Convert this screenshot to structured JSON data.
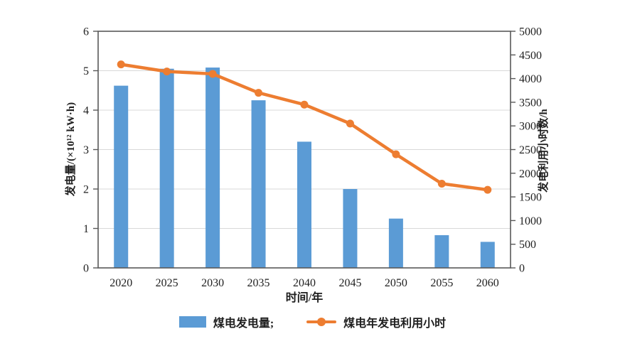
{
  "chart_data": {
    "type": "combo-bar-line",
    "categories": [
      "2020",
      "2025",
      "2030",
      "2035",
      "2040",
      "2045",
      "2050",
      "2055",
      "2060"
    ],
    "series": [
      {
        "name": "煤电发电量",
        "chart": "bar",
        "axis": "left",
        "values": [
          4.62,
          5.05,
          5.08,
          4.25,
          3.2,
          2.0,
          1.25,
          0.83,
          0.66
        ]
      },
      {
        "name": "煤电年发电利用小时",
        "chart": "line",
        "axis": "right",
        "values": [
          4300,
          4150,
          4100,
          3700,
          3450,
          3050,
          2400,
          1780,
          1650
        ]
      }
    ],
    "xlabel": "时间/年",
    "left_axis": {
      "label": "发电量/(×10¹² kW·h)",
      "min": 0,
      "max": 6,
      "step": 1
    },
    "right_axis": {
      "label": "发电利用小时数/h",
      "min": 0,
      "max": 5000,
      "step": 500
    },
    "grid": "horizontal",
    "legend_position": "bottom",
    "legend": [
      {
        "label": "煤电发电量;"
      },
      {
        "label": "煤电年发电利用小时"
      }
    ],
    "colors": {
      "bar": "#5B9BD5",
      "line": "#ED7D31",
      "gridline": "#D9D9D9",
      "frame": "#595959",
      "text": "#1f1f1f"
    }
  }
}
